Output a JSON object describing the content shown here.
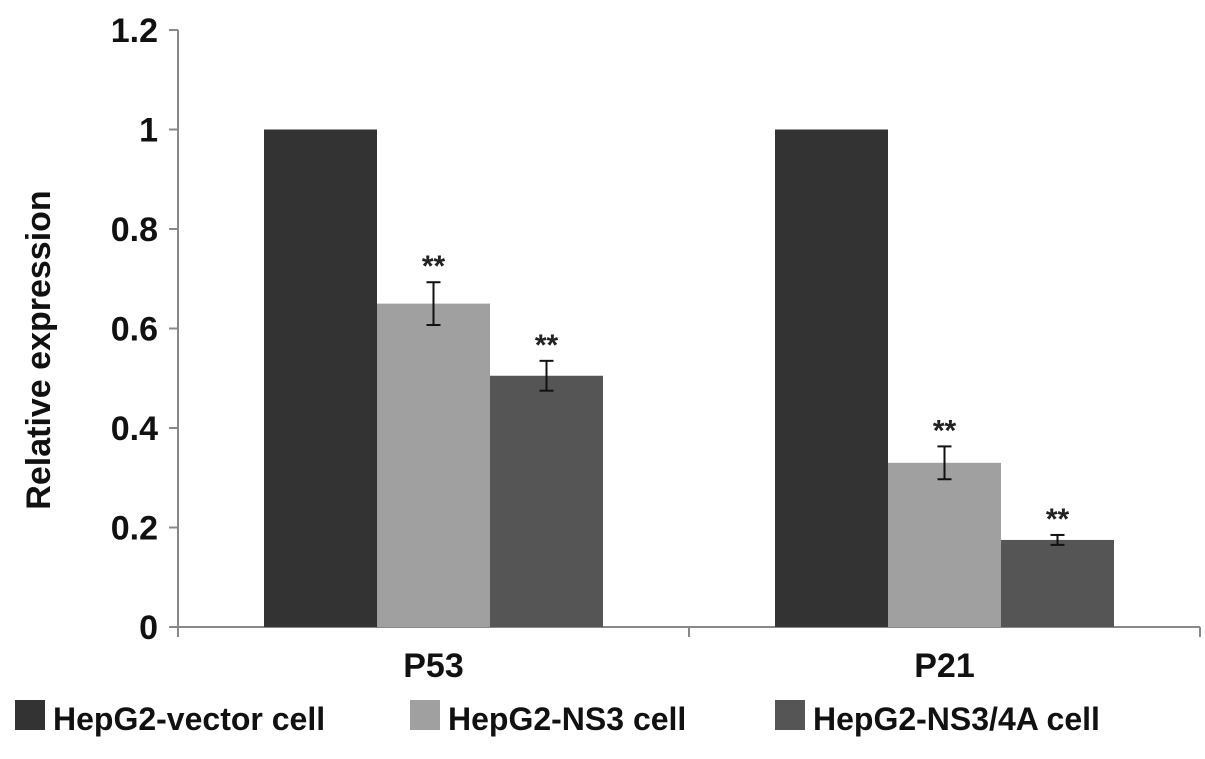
{
  "chart_data": {
    "type": "bar",
    "categories": [
      "P53",
      "P21"
    ],
    "series": [
      {
        "name": "HepG2-vector cell",
        "values": [
          1.0,
          1.0
        ],
        "errors": [
          0,
          0
        ],
        "significance": [
          "",
          ""
        ],
        "color": "#333333"
      },
      {
        "name": "HepG2-NS3 cell",
        "values": [
          0.65,
          0.33
        ],
        "errors": [
          0.043,
          0.033
        ],
        "significance": [
          "**",
          "**"
        ],
        "color": "#a0a0a0"
      },
      {
        "name": "HepG2-NS3/4A cell",
        "values": [
          0.505,
          0.175
        ],
        "errors": [
          0.03,
          0.01
        ],
        "significance": [
          "**",
          "**"
        ],
        "color": "#555555"
      }
    ],
    "title": "",
    "xlabel": "",
    "ylabel": "Relative expression",
    "ylim": [
      0,
      1.2
    ],
    "yticks": [
      "0",
      "0.2",
      "0.4",
      "0.6",
      "0.8",
      "1",
      "1.2"
    ],
    "grid": false,
    "legend_position": "bottom"
  }
}
